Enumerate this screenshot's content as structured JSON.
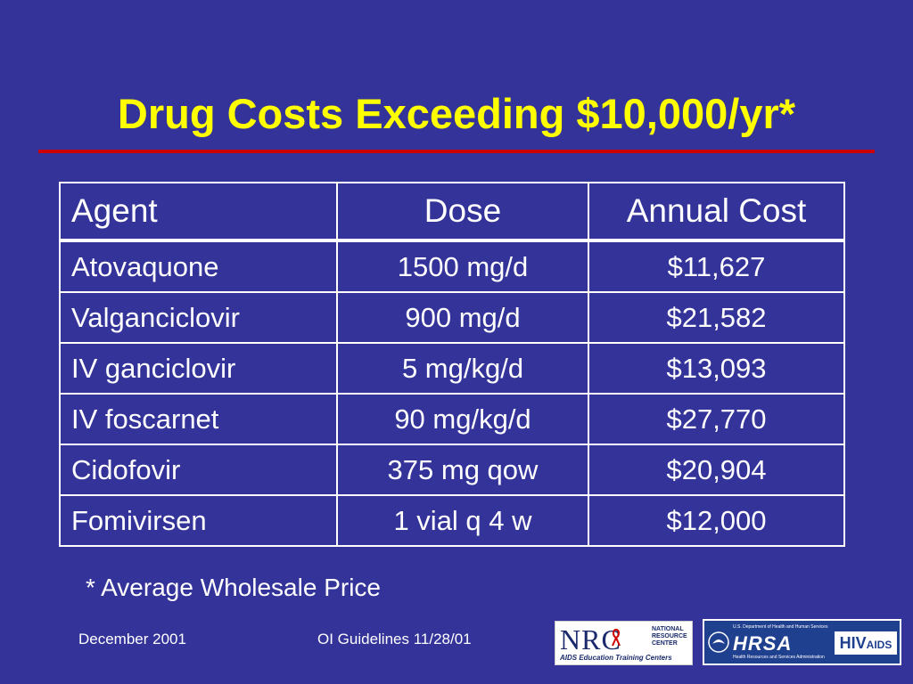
{
  "slide": {
    "title": "Drug Costs Exceeding $10,000/yr*",
    "footnote": "* Average Wholesale Price",
    "footer_date": "December 2001",
    "footer_center": "OI Guidelines 11/28/01"
  },
  "table": {
    "headers": [
      "Agent",
      "Dose",
      "Annual Cost"
    ],
    "rows": [
      [
        "Atovaquone",
        "1500 mg/d",
        "$11,627"
      ],
      [
        "Valganciclovir",
        "900 mg/d",
        "$21,582"
      ],
      [
        "IV ganciclovir",
        "5 mg/kg/d",
        "$13,093"
      ],
      [
        "IV foscarnet",
        "90 mg/kg/d",
        "$27,770"
      ],
      [
        "Cidofovir",
        "375 mg qow",
        "$20,904"
      ],
      [
        "Fomivirsen",
        "1 vial q 4 w",
        "$12,000"
      ]
    ]
  },
  "logos": {
    "nrc": {
      "letters": "NRC",
      "small_lines": [
        "NATIONAL",
        "RESOURCE",
        "CENTER"
      ],
      "subtitle": "AIDS Education Training Centers",
      "ribbon_color": "#cc0000"
    },
    "hrsa": {
      "top_line": "U.S. Department of Health and Human Services",
      "word": "HRSA",
      "bottom_line": "Health Resources and Services Administration",
      "badge_hiv": "HIV",
      "badge_aids": "AIDS"
    }
  },
  "colors": {
    "background": "#333399",
    "title": "#ffff00",
    "rule": "#cc0000",
    "text": "#ffffff"
  }
}
